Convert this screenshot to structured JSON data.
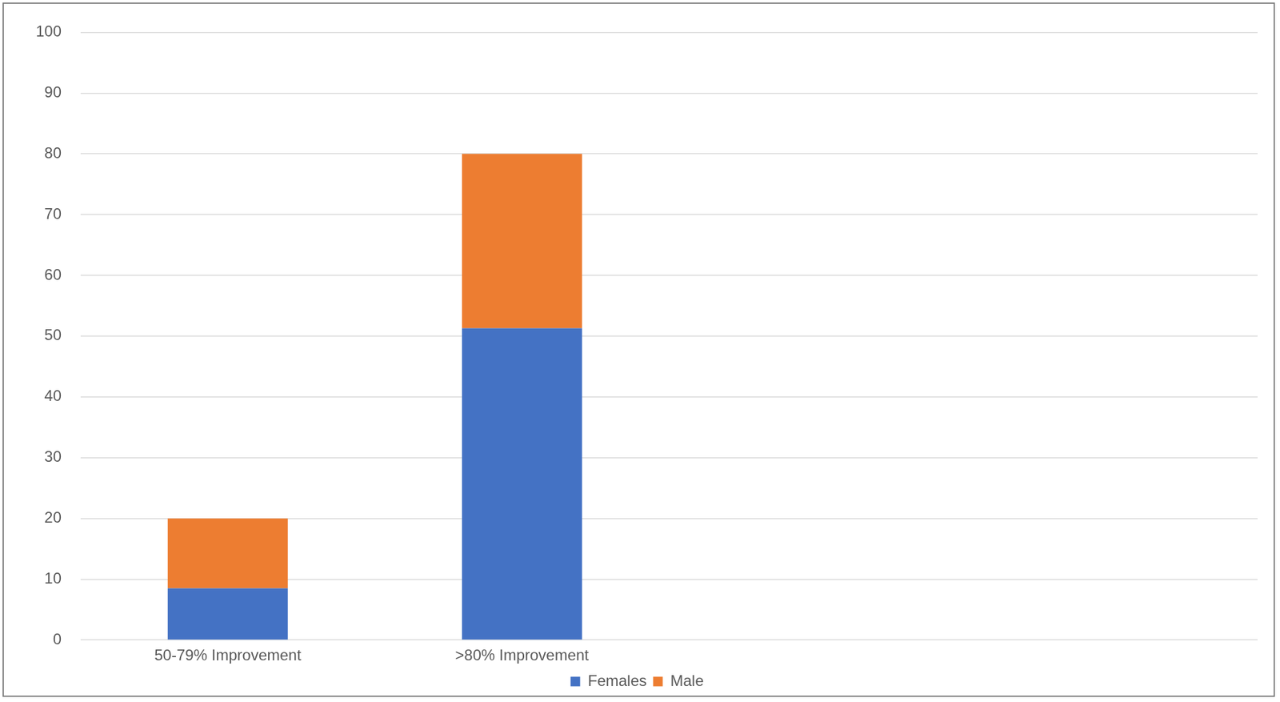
{
  "chart_data": {
    "type": "bar",
    "stacked": true,
    "categories": [
      "50-79% Improvement",
      ">80% Improvement",
      null,
      null
    ],
    "series": [
      {
        "name": "Females",
        "color": "#4472c4",
        "values": [
          8.5,
          51.3,
          null,
          null
        ]
      },
      {
        "name": "Male",
        "color": "#ed7d31",
        "values": [
          11.5,
          28.7,
          null,
          null
        ]
      }
    ],
    "ylim": [
      0,
      100
    ],
    "yticks": [
      0,
      10,
      20,
      30,
      40,
      50,
      60,
      70,
      80,
      90,
      100
    ],
    "grid": true,
    "legend": "bottom"
  }
}
